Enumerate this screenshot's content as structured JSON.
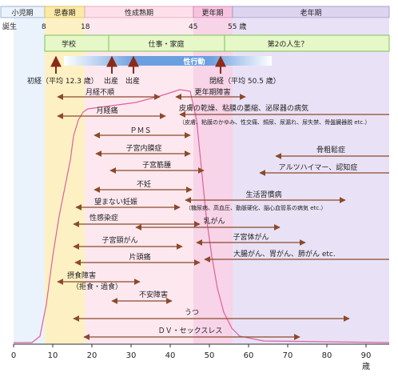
{
  "stages": [
    {
      "label": "小児期",
      "color": "#eaf2fb"
    },
    {
      "label": "思春期",
      "color": "#fdeaa8"
    },
    {
      "label": "性成熟期",
      "color": "#fde0ea"
    },
    {
      "label": "更年期",
      "color": "#f6c4df"
    },
    {
      "label": "老年期",
      "color": "#ddd4f0"
    }
  ],
  "age_marks": {
    "birth": "誕生",
    "ages": [
      "8",
      "18",
      "45",
      "55 歳"
    ]
  },
  "social": {
    "school": "学校",
    "work": "仕事・家庭",
    "second_life": "第2の人生？"
  },
  "sexual_activity": "性行動",
  "milestones": {
    "menarche": "初経（平均 12.3 歳）",
    "birth1": "出産",
    "birth2": "出産",
    "menopause": "閉経（平均 50.5 歳）"
  },
  "conditions": [
    {
      "name": "月経不順"
    },
    {
      "name": "更年期障害"
    },
    {
      "name": "月経痛"
    },
    {
      "name": "皮膚の乾燥、粘膜の萎縮、泌尿器の病気",
      "note": "（皮膚、粘膜のかゆみ、性交痛、頻尿、尿漏れ、尿失禁、骨盤臓器脱 etc.）"
    },
    {
      "name": "ＰＭＳ"
    },
    {
      "name": "子宮内膜症"
    },
    {
      "name": "骨粗鬆症"
    },
    {
      "name": "子宮筋腫"
    },
    {
      "name": "アルツハイマー、認知症"
    },
    {
      "name": "不妊"
    },
    {
      "name": "望まない妊娠"
    },
    {
      "name": "生活習慣病",
      "note": "（糖尿病、高血圧、動脈硬化、脳心血管系の病気 etc.）"
    },
    {
      "name": "性感染症"
    },
    {
      "name": "乳がん"
    },
    {
      "name": "子宮頸がん"
    },
    {
      "name": "子宮体がん"
    },
    {
      "name": "片頭痛"
    },
    {
      "name": "大腸がん、胃がん、肺がん etc."
    },
    {
      "name": "摂食障害",
      "note": "（拒食・過食）"
    },
    {
      "name": "不安障害"
    },
    {
      "name": "うつ"
    },
    {
      "name": "ＤＶ・セックスレス"
    }
  ],
  "x_axis": {
    "ticks": [
      "0",
      "10",
      "20",
      "30",
      "40",
      "50",
      "60",
      "70",
      "80",
      "90"
    ],
    "unit": "歳"
  },
  "colors": {
    "arrow": "#8b4a2b",
    "curve": "#e0609c",
    "milestone_arrow": "#8b2a1a",
    "social_bar": "#e6f7c8",
    "social_border": "#7cc35a",
    "activity_bar": "#6a9fe0"
  }
}
